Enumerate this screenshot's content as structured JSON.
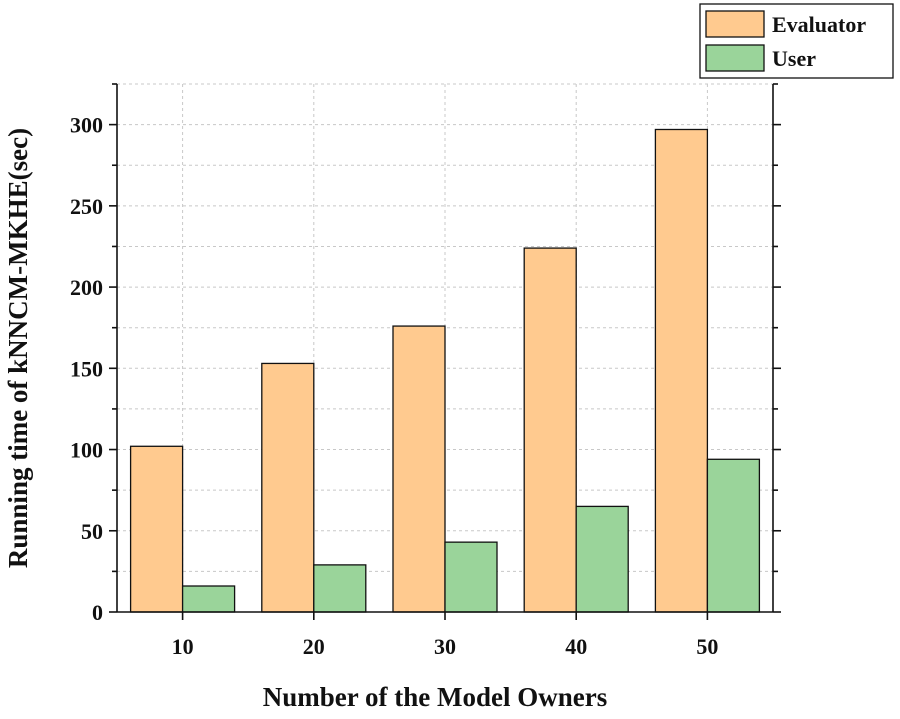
{
  "chart_data": {
    "type": "bar",
    "title": "",
    "xlabel": "Number of the Model Owners",
    "ylabel": "Running time of kNNCM-MKHE(sec)",
    "categories": [
      "10",
      "20",
      "30",
      "40",
      "50"
    ],
    "series": [
      {
        "name": "Evaluator",
        "color": "#FFCA8F",
        "values": [
          102,
          153,
          176,
          224,
          297
        ]
      },
      {
        "name": "User",
        "color": "#9AD49A",
        "values": [
          16,
          29,
          43,
          65,
          94
        ]
      }
    ],
    "ylim": [
      0,
      325
    ],
    "yticks": [
      0,
      50,
      100,
      150,
      200,
      250,
      300
    ],
    "ytick_labels": [
      "0",
      "50",
      "100",
      "150",
      "200",
      "250",
      "300"
    ],
    "grid": true,
    "legend_position": "top-right"
  }
}
